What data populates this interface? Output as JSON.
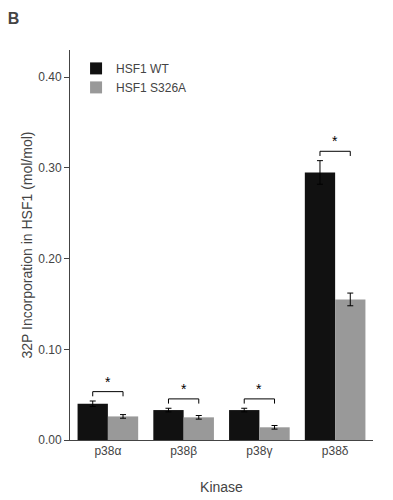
{
  "chart_data": {
    "type": "bar",
    "title": "B",
    "x_label": "Kinase",
    "y_label": "32P Incorporation in HSF1 (mol/mol)",
    "categories": [
      "p38α",
      "p38β",
      "p38γ",
      "p38δ"
    ],
    "series": [
      {
        "name": "HSF1 WT",
        "color": "#111111",
        "values": [
          0.04,
          0.033,
          0.033,
          0.295
        ],
        "errors": [
          0.003,
          0.002,
          0.002,
          0.013
        ]
      },
      {
        "name": "HSF1 S326A",
        "color": "#999999",
        "values": [
          0.026,
          0.025,
          0.014,
          0.155
        ],
        "errors": [
          0.002,
          0.002,
          0.002,
          0.007
        ]
      }
    ],
    "ylim": [
      0,
      0.43
    ],
    "yticks": [
      {
        "value": 0.0,
        "label": "0.00"
      },
      {
        "value": 0.1,
        "label": "0.10"
      },
      {
        "value": 0.2,
        "label": "0.20"
      },
      {
        "value": 0.3,
        "label": "0.30"
      },
      {
        "value": 0.4,
        "label": "0.40"
      }
    ],
    "grid": false,
    "legend": "upper left",
    "annotations": [
      {
        "x": "p38α",
        "text": "*"
      },
      {
        "x": "p38β",
        "text": "*"
      },
      {
        "x": "p38γ",
        "text": "*"
      },
      {
        "x": "p38δ",
        "text": "*"
      }
    ]
  }
}
